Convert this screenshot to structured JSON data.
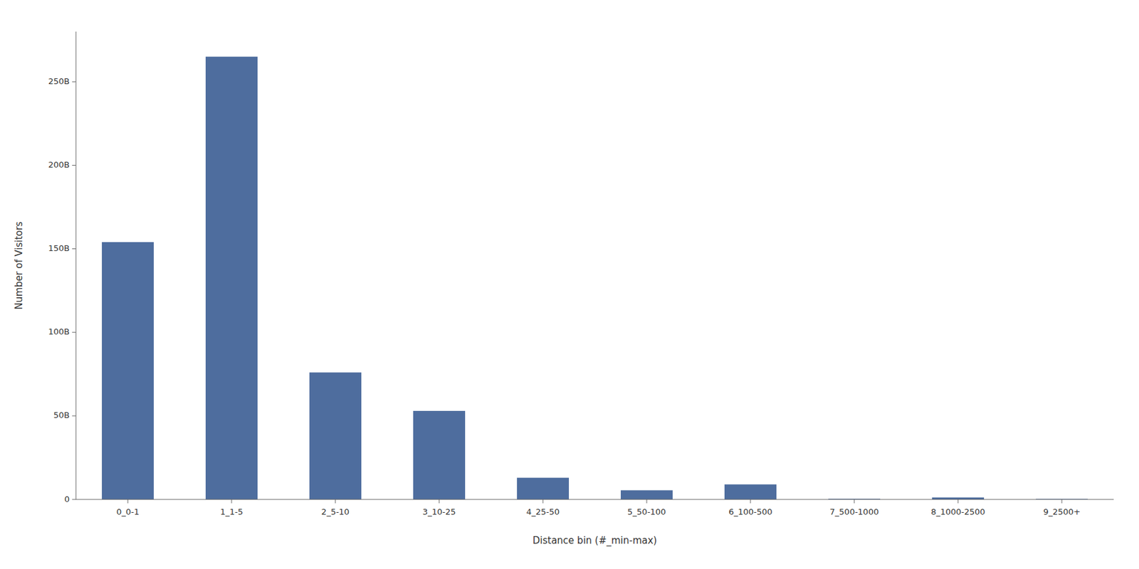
{
  "chart_data": {
    "type": "bar",
    "categories": [
      "0_0-1",
      "1_1-5",
      "2_5-10",
      "3_10-25",
      "4_25-50",
      "5_50-100",
      "6_100-500",
      "7_500-1000",
      "8_1000-2500",
      "9_2500+"
    ],
    "values": [
      154000000000.0,
      265000000000.0,
      76000000000.0,
      53000000000.0,
      13000000000.0,
      5500000000.0,
      9000000000.0,
      400000000.0,
      1200000000.0,
      300000000.0
    ],
    "color": "#4e6d9e",
    "xlabel": "Distance bin (#_min-max)",
    "ylabel": "Number of Visitors",
    "ylim": [
      0,
      280000000000.0
    ],
    "yticks": [
      0,
      {
        "value": 50000000000.0,
        "label": "50B"
      },
      {
        "value": 100000000000.0,
        "label": "100B"
      },
      {
        "value": 150000000000.0,
        "label": "150B"
      },
      {
        "value": 200000000000.0,
        "label": "200B"
      },
      {
        "value": 250000000000.0,
        "label": "250B"
      }
    ],
    "grid": false
  }
}
